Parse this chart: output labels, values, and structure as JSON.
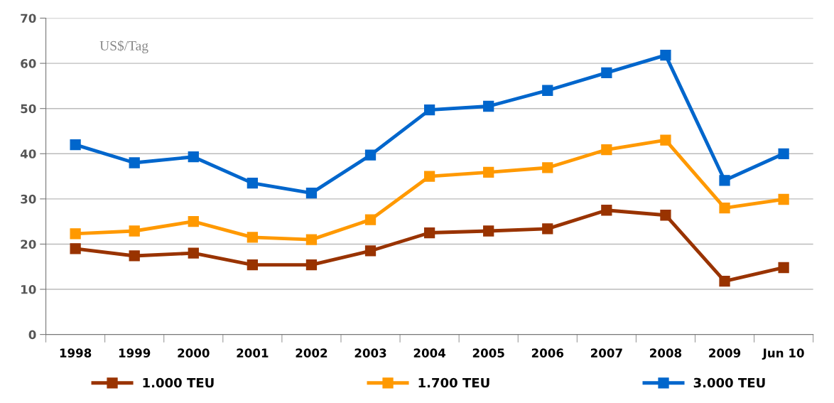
{
  "chart_data": {
    "type": "line",
    "categories": [
      "1998",
      "1999",
      "2000",
      "2001",
      "2002",
      "2003",
      "2004",
      "2005",
      "2006",
      "2007",
      "2008",
      "2009",
      "Jun 10"
    ],
    "series": [
      {
        "name": "1.000 TEU",
        "color": "#993300",
        "values": [
          19.0,
          17.4,
          18.0,
          15.4,
          15.4,
          18.5,
          22.5,
          22.9,
          23.4,
          27.5,
          26.4,
          11.8,
          14.8
        ]
      },
      {
        "name": "1.700 TEU",
        "color": "#ff9900",
        "values": [
          22.3,
          22.9,
          25.0,
          21.5,
          21.0,
          25.4,
          35.0,
          35.9,
          36.9,
          40.9,
          43.0,
          28.0,
          29.9
        ]
      },
      {
        "name": "3.000 TEU",
        "color": "#0066cc",
        "values": [
          42.0,
          38.0,
          39.3,
          33.5,
          31.3,
          39.7,
          49.7,
          50.5,
          54.0,
          57.9,
          61.8,
          34.1,
          40.0
        ]
      }
    ],
    "ylim": [
      0,
      70
    ],
    "yticks": [
      0,
      10,
      20,
      30,
      40,
      50,
      60,
      70
    ],
    "grid": "y",
    "legend": "bottom",
    "marker": "square",
    "line_style": "solid",
    "annotations": [
      "US$/Tag"
    ]
  }
}
